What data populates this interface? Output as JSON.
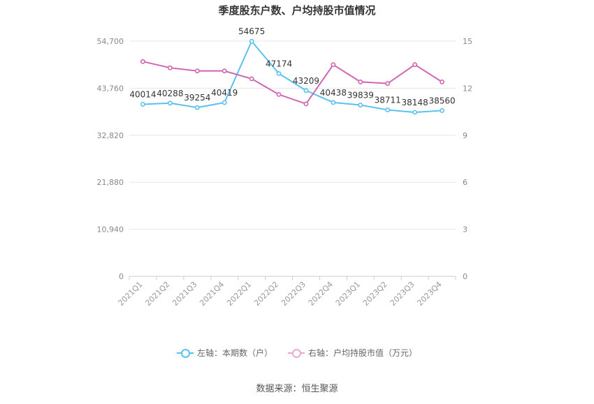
{
  "chart_data": {
    "type": "line",
    "title": "季度股东户数、户均持股市值情况",
    "categories": [
      "2021Q1",
      "2021Q2",
      "2021Q3",
      "2021Q4",
      "2022Q1",
      "2022Q2",
      "2022Q3",
      "2022Q4",
      "2023Q1",
      "2023Q2",
      "2023Q3",
      "2023Q4"
    ],
    "y_left": {
      "ticks": [
        "0",
        "10,940",
        "21,880",
        "32,820",
        "43,760",
        "54,700"
      ],
      "range": [
        0,
        54700
      ]
    },
    "y_right": {
      "ticks": [
        "0",
        "3",
        "6",
        "9",
        "12",
        "15"
      ],
      "range": [
        0,
        15
      ]
    },
    "series": [
      {
        "name": "左轴：本期数（户）",
        "axis": "left",
        "color": "#5bc0f0",
        "values": [
          40014,
          40288,
          39254,
          40419,
          54675,
          47174,
          43209,
          40438,
          39839,
          38711,
          38148,
          38560
        ],
        "labels": [
          "40014",
          "40288",
          "39254",
          "40419",
          "54675",
          "47174",
          "43209",
          "40438",
          "39839",
          "38711",
          "38148",
          "38560"
        ]
      },
      {
        "name": "右轴：户均持股市值（万元）",
        "axis": "right",
        "color": "#d066b0",
        "values": [
          13.7,
          13.3,
          13.1,
          13.1,
          12.6,
          11.6,
          11.0,
          13.5,
          12.4,
          12.3,
          13.5,
          12.4
        ]
      }
    ],
    "grid": true,
    "legend_position": "bottom"
  },
  "source": "数据来源：恒生聚源"
}
